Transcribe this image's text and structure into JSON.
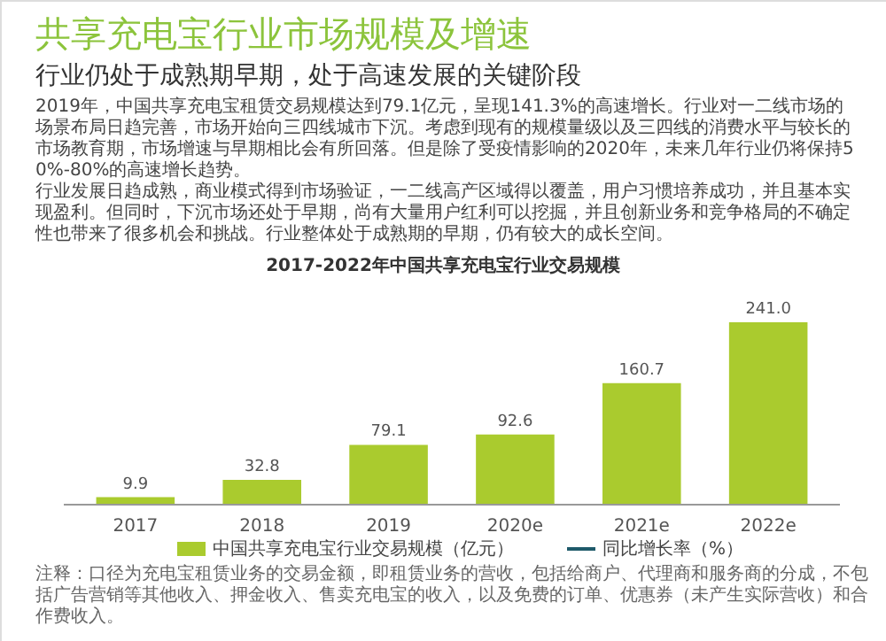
{
  "chart_data": {
    "type": "bar",
    "title": "共享充电宝行业市场规模及增速",
    "subtitle": "行业仍处于成熟期早期，处于高速发展的关键阶段",
    "annotations": [
      "2019年，中国共享充电宝租赁交易规模达到79.1亿元，呈现141.3%的高速增长。行业对一二线市场的场景布局日趋完善，市场开始向三四线城市下沉。考虑到现有的规模量级以及三四线的消费水平与较长的市场教育期，市场增速与早期相比会有所回落。但是除了受疫情影响的2020年，未来几年行业仍将保持50%-80%的高速增长趋势。",
      "行业发展日趋成熟，商业模式得到市场验证，一二线高产区域得以覆盖，用户习惯培养成功，并且基本实现盈利。但同时，下沉市场还处于早期，尚有大量用户红利可以挖掘，并且创新业务和竞争格局的不确定性也带来了很多机会和挑战。行业整体处于成熟期的早期，仍有较大的成长空间。",
      "2017-2022年中国共享充电宝行业交易规模",
      "注释：口径为充电宝租赁业务的交易金额，即租赁业务的营收，包括给商户、代理商和服务商的分成，不包括广告营销等其他收入、押金收入、售卖充电宝的收入，以及免费的订单、优惠券（未产生实际营收）和合作费收入。"
    ],
    "categories": [
      "2017",
      "2018",
      "2019",
      "2020e",
      "2021e",
      "2022e"
    ],
    "series": [
      {
        "name": "中国共享充电宝行业交易规模（亿元）",
        "color": "#aacb2e",
        "values": [
          9.9,
          32.8,
          79.1,
          92.6,
          160.7,
          241.0
        ],
        "value_labels": [
          "9.9",
          "32.8",
          "79.1",
          "92.6",
          "160.7",
          "241.0"
        ]
      },
      {
        "name": "同比增长率（%）",
        "type": "line",
        "color": "#1e5a6a",
        "values": [
          null,
          null,
          null,
          null,
          null,
          null
        ]
      }
    ],
    "legend": "bottom"
  }
}
